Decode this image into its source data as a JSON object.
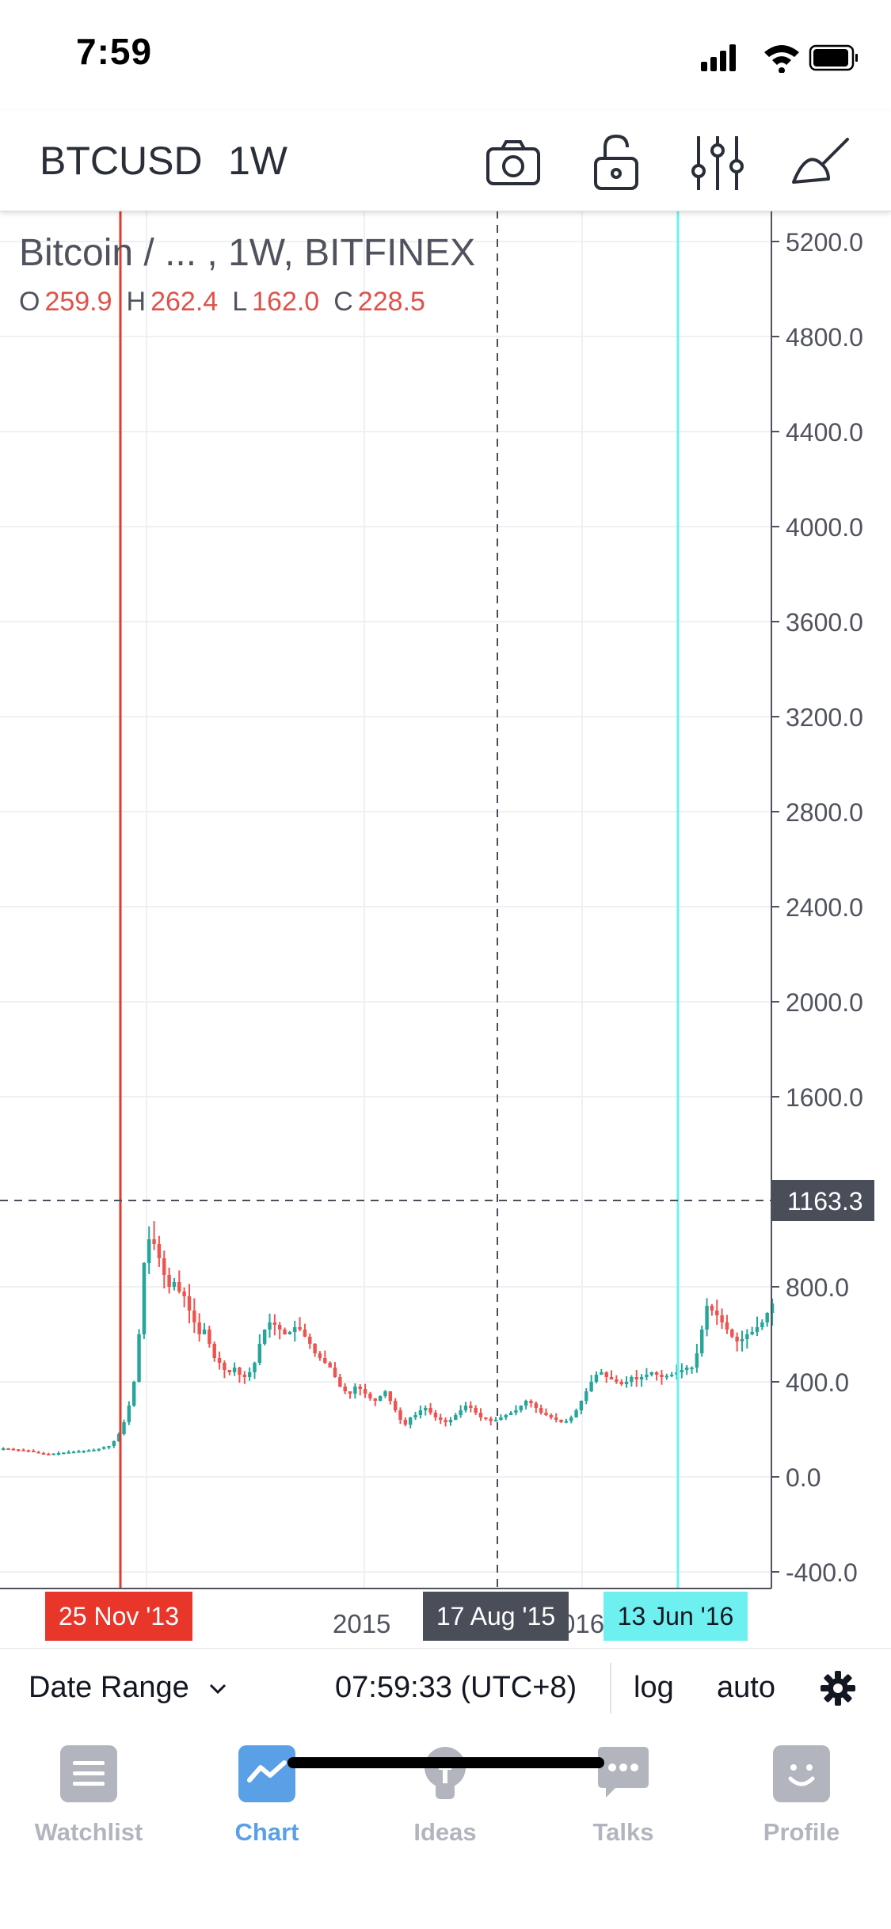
{
  "status_bar": {
    "time": "7:59"
  },
  "toolbar": {
    "symbol": "BTCUSD",
    "interval": "1W",
    "tools": [
      "camera-icon",
      "lock-icon",
      "indicators-icon",
      "drawing-icon"
    ]
  },
  "legend": {
    "title": "Bitcoin / ...  , 1W, BITFINEX",
    "ohlc": [
      {
        "label": "O",
        "value": "259.9"
      },
      {
        "label": "H",
        "value": "262.4"
      },
      {
        "label": "L",
        "value": "162.0"
      },
      {
        "label": "C",
        "value": "228.5"
      }
    ]
  },
  "chart_data": {
    "type": "candlestick",
    "y_ticks": [
      "5200.0",
      "4800.0",
      "4400.0",
      "4000.0",
      "3600.0",
      "3200.0",
      "2800.0",
      "2400.0",
      "2000.0",
      "1600.0",
      "800.0",
      "400.0",
      "0.0",
      "-400.0"
    ],
    "y_tick_values": [
      5200,
      4800,
      4400,
      4000,
      3600,
      3200,
      2800,
      2400,
      2000,
      1600,
      800,
      400,
      0,
      -400
    ],
    "ylim": [
      -470,
      5330
    ],
    "x_tick_label": "2015",
    "x_tick_partial": "016",
    "crosshair_price_label": "1163.3",
    "crosshair_price": 1163.3,
    "markers": [
      {
        "label": "25 Nov '13",
        "color": "#e8362a",
        "style": "solid"
      },
      {
        "label": "17 Aug '15",
        "color": "#4a4e59",
        "style": "dashed"
      },
      {
        "label": "13 Jun '16",
        "color": "#6ef0f0",
        "style": "solid"
      }
    ],
    "weekly_close": [
      120,
      118,
      116,
      114,
      112,
      110,
      105,
      100,
      97,
      95,
      98,
      100,
      102,
      104,
      106,
      108,
      110,
      112,
      114,
      118,
      125,
      130,
      150,
      180,
      230,
      300,
      400,
      600,
      900,
      1000,
      980,
      920,
      850,
      800,
      820,
      780,
      760,
      700,
      650,
      600,
      620,
      560,
      500,
      480,
      450,
      440,
      460,
      430,
      420,
      440,
      480,
      560,
      620,
      650,
      640,
      620,
      600,
      610,
      630,
      620,
      590,
      560,
      520,
      500,
      480,
      460,
      420,
      380,
      360,
      350,
      380,
      370,
      350,
      330,
      320,
      340,
      360,
      320,
      280,
      240,
      220,
      250,
      260,
      280,
      290,
      270,
      250,
      240,
      230,
      240,
      260,
      280,
      300,
      290,
      270,
      250,
      245,
      235,
      240,
      250,
      260,
      270,
      280,
      300,
      320,
      310,
      290,
      270,
      260,
      250,
      240,
      230,
      235,
      250,
      280,
      320,
      360,
      400,
      430,
      440,
      420,
      410,
      400,
      390,
      400,
      420,
      410,
      420,
      430,
      440,
      430,
      420,
      425,
      430,
      440,
      450,
      460,
      460,
      520,
      620,
      720,
      700,
      680,
      650,
      620,
      590,
      570,
      580,
      600,
      610,
      630,
      650,
      690,
      730
    ]
  },
  "footer": {
    "date_range": "Date Range",
    "clock": "07:59:33 (UTC+8)",
    "log": "log",
    "auto": "auto"
  },
  "nav": {
    "items": [
      {
        "label": "Watchlist",
        "icon": "watchlist-icon",
        "active": false
      },
      {
        "label": "Chart",
        "icon": "chart-icon",
        "active": true
      },
      {
        "label": "Ideas",
        "icon": "ideas-icon",
        "active": false
      },
      {
        "label": "Talks",
        "icon": "talks-icon",
        "active": false
      },
      {
        "label": "Profile",
        "icon": "profile-icon",
        "active": false
      }
    ]
  },
  "colors": {
    "up": "#26a69a",
    "down": "#ef5350",
    "active": "#5aa0e6",
    "inactive": "#b2b5be"
  }
}
